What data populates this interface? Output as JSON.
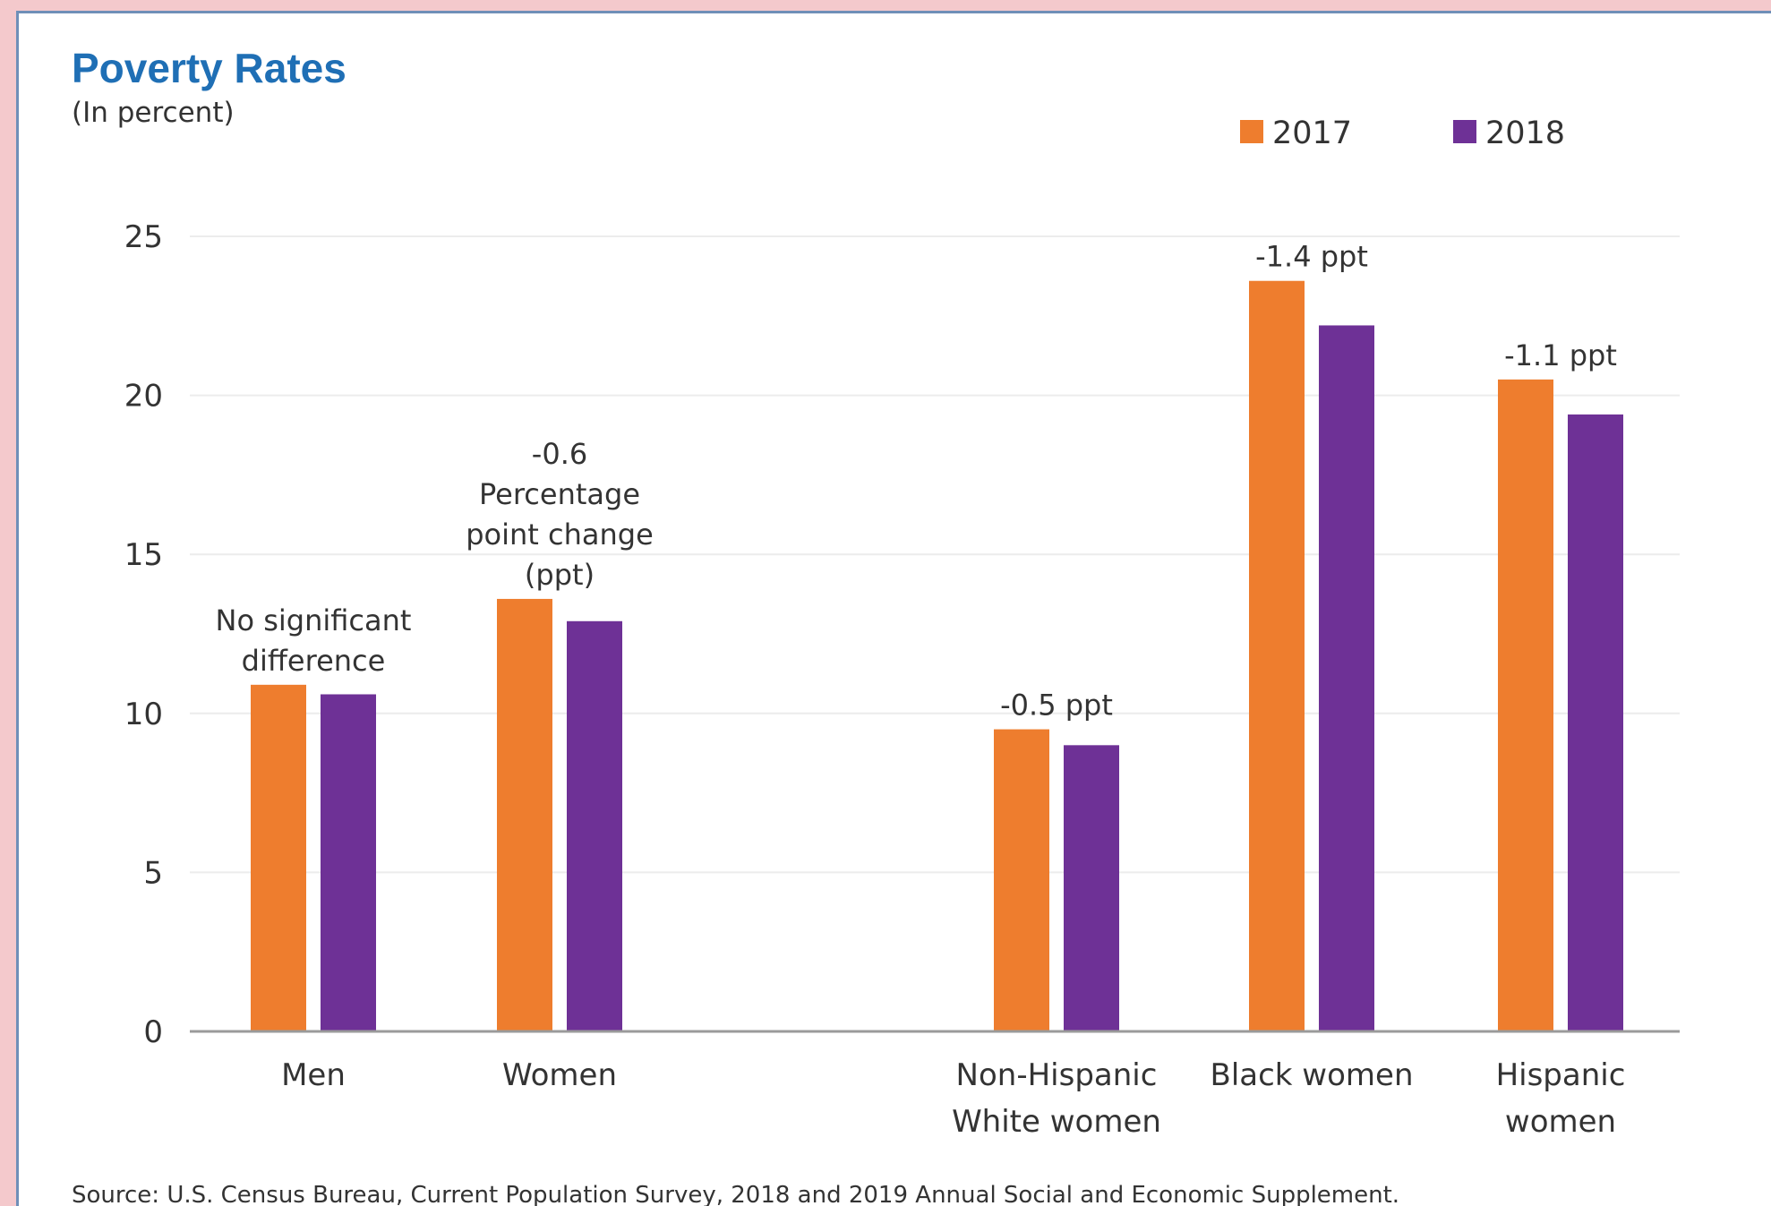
{
  "chart_data": {
    "type": "bar",
    "title": "Poverty Rates",
    "subtitle": "(In percent)",
    "categories": [
      [
        "Men"
      ],
      [
        "Women"
      ],
      [
        "Non-Hispanic",
        "White women"
      ],
      [
        "Black women"
      ],
      [
        "Hispanic",
        "women"
      ]
    ],
    "series": [
      {
        "name": "2017",
        "color": "#ee7d2e",
        "values": [
          10.9,
          13.6,
          9.5,
          23.6,
          20.5
        ]
      },
      {
        "name": "2018",
        "color": "#6e3196",
        "values": [
          10.6,
          12.9,
          9.0,
          22.2,
          19.4
        ]
      }
    ],
    "annotations": [
      [
        "No significant",
        "difference"
      ],
      [
        "-0.6",
        "Percentage",
        "point change",
        "(ppt)"
      ],
      [
        "-0.5 ppt"
      ],
      [
        "-1.4 ppt"
      ],
      [
        "-1.1 ppt"
      ]
    ],
    "ylim": [
      0,
      25
    ],
    "yticks": [
      "0",
      "5",
      "10",
      "15",
      "20",
      "25"
    ],
    "grid": true,
    "legend_position": "top-right",
    "source": "Source: U.S. Census Bureau, Current Population Survey, 2018 and 2019 Annual Social and Economic Supplement."
  }
}
